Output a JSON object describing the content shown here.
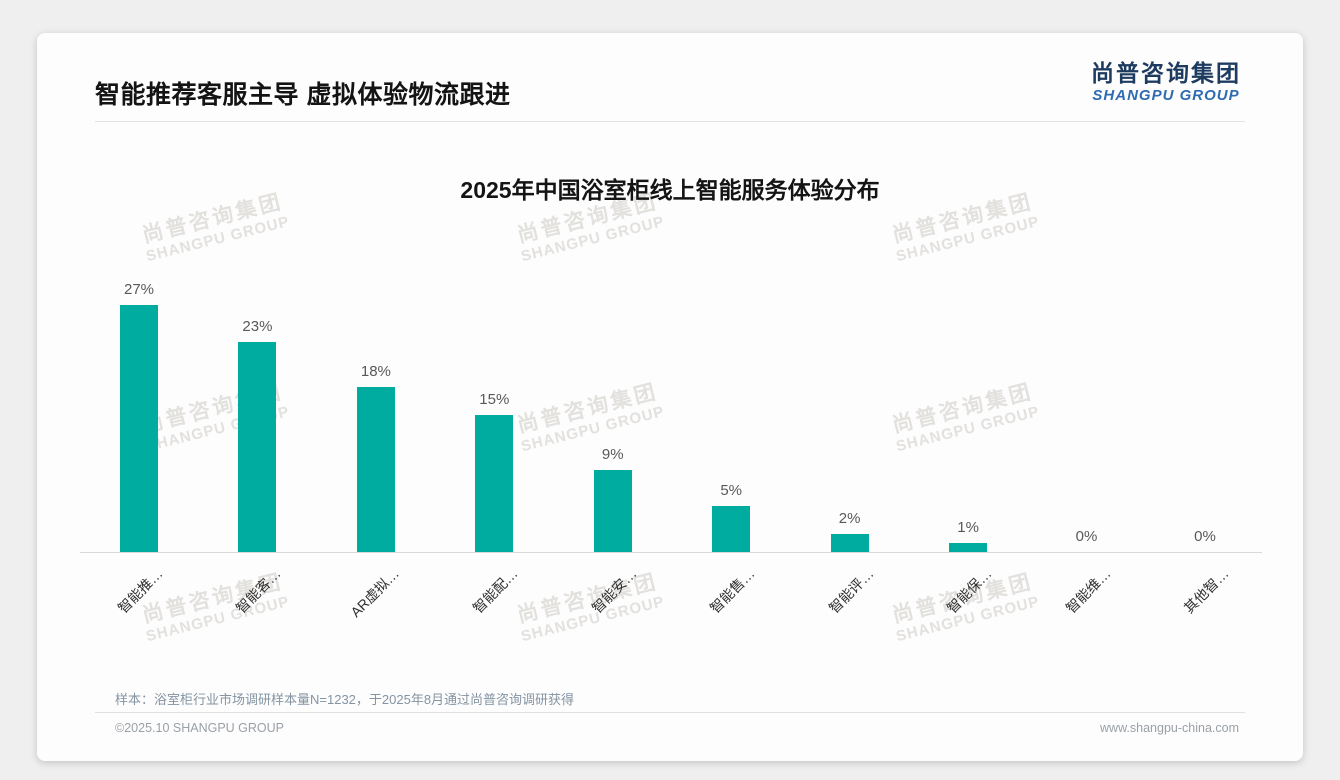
{
  "page": {
    "header": {
      "title": "智能推荐客服主导 虚拟体验物流跟进"
    },
    "logo": {
      "cn": "尚普咨询集团",
      "en": "SHANGPU GROUP"
    },
    "watermark": {
      "cn": "尚普咨询集团",
      "en": "SHANGPU GROUP"
    },
    "footer": {
      "note": "样本：浴室柜行业市场调研样本量N=1232，于2025年8月通过尚普咨询调研获得",
      "copyright": "©2025.10 SHANGPU GROUP",
      "website": "www.shangpu-china.com"
    }
  },
  "colors": {
    "bar": "#00ACA0",
    "logo_cn": "#1d3a5f",
    "logo_en": "#2f6bb0",
    "value_label": "#595959",
    "note": "#8494a2"
  },
  "chart_data": {
    "type": "bar",
    "title": "2025年中国浴室柜线上智能服务体验分布",
    "categories": [
      "智能推…",
      "智能客…",
      "AR虚拟…",
      "智能配…",
      "智能安…",
      "智能售…",
      "智能评…",
      "智能保…",
      "智能维…",
      "其他智…"
    ],
    "values": [
      27,
      23,
      18,
      15,
      9,
      5,
      2,
      1,
      0,
      0
    ],
    "value_labels": [
      "27%",
      "23%",
      "18%",
      "15%",
      "9%",
      "5%",
      "2%",
      "1%",
      "0%",
      "0%"
    ],
    "unit": "%",
    "xlabel": "",
    "ylabel": "",
    "ylim": [
      0,
      30
    ],
    "grid": false,
    "legend": false,
    "x_label_rotation_deg": 45,
    "bar_color": "#00ACA0"
  }
}
